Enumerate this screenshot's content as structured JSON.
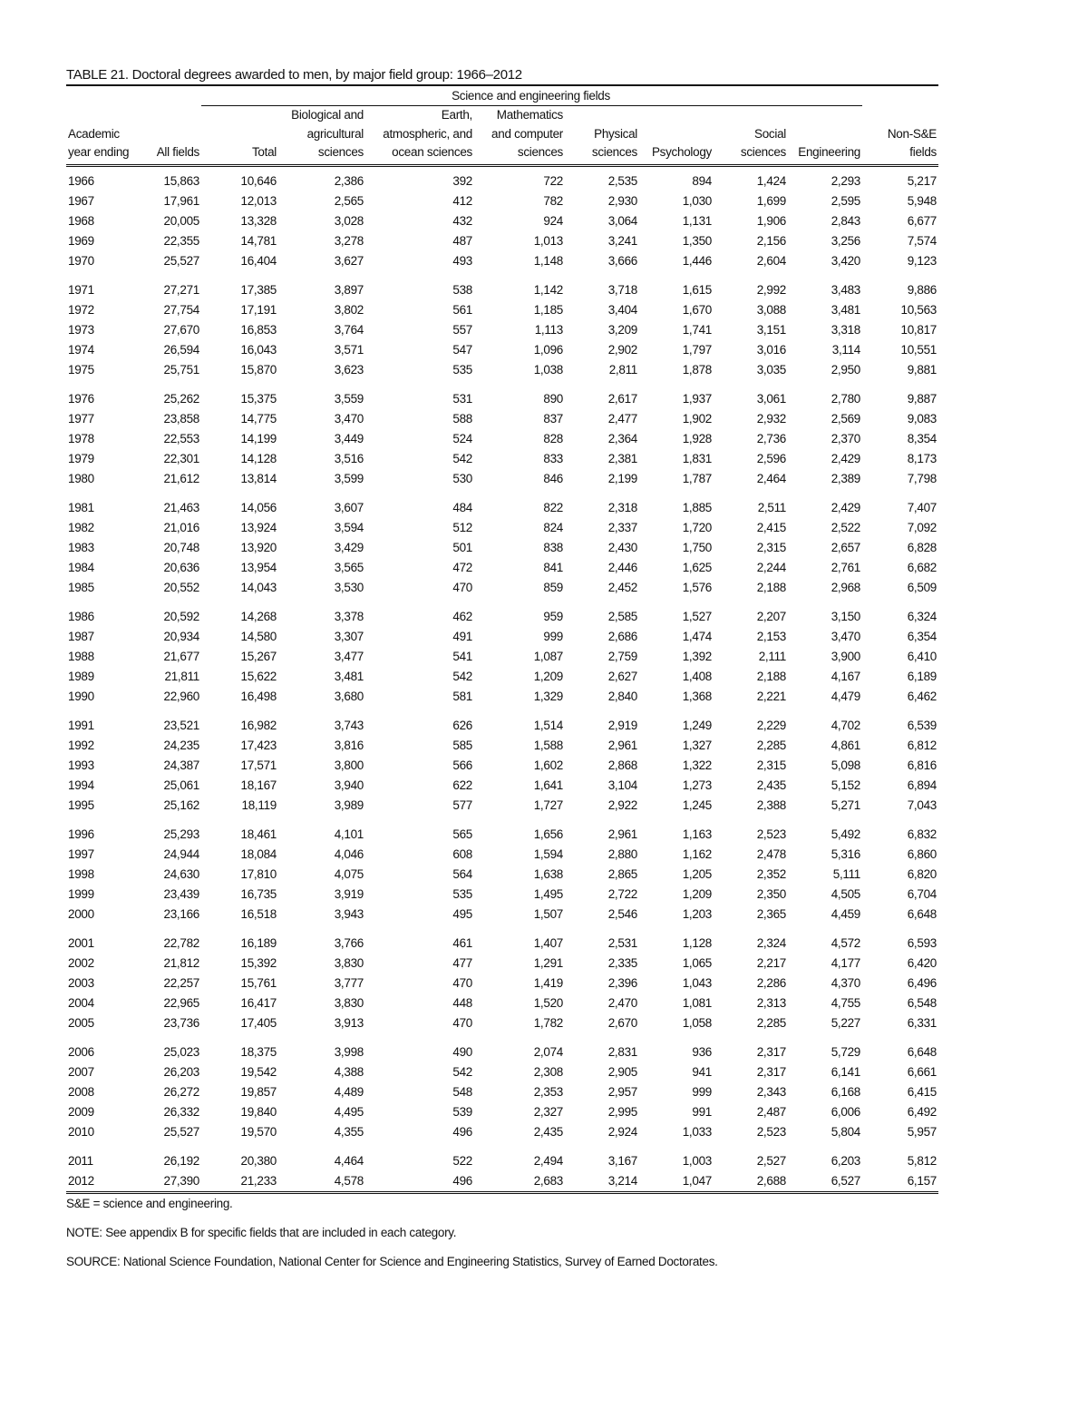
{
  "title": "TABLE 21. Doctoral degrees awarded to men, by major field group: 1966–2012",
  "spanner": "Science and engineering fields",
  "headers": [
    [
      "",
      "",
      "",
      "Biological and",
      "Earth,",
      "Mathematics",
      "",
      "",
      "",
      "",
      ""
    ],
    [
      "Academic",
      "",
      "",
      "agricultural",
      "atmospheric, and",
      "and computer",
      "Physical",
      "",
      "Social",
      "",
      "Non-S&E"
    ],
    [
      "year ending",
      "All fields",
      "Total",
      "sciences",
      "ocean sciences",
      "sciences",
      "sciences",
      "Psychology",
      "sciences",
      "Engineering",
      "fields"
    ]
  ],
  "rows": [
    [
      "1966",
      "15,863",
      "10,646",
      "2,386",
      "392",
      "722",
      "2,535",
      "894",
      "1,424",
      "2,293",
      "5,217"
    ],
    [
      "1967",
      "17,961",
      "12,013",
      "2,565",
      "412",
      "782",
      "2,930",
      "1,030",
      "1,699",
      "2,595",
      "5,948"
    ],
    [
      "1968",
      "20,005",
      "13,328",
      "3,028",
      "432",
      "924",
      "3,064",
      "1,131",
      "1,906",
      "2,843",
      "6,677"
    ],
    [
      "1969",
      "22,355",
      "14,781",
      "3,278",
      "487",
      "1,013",
      "3,241",
      "1,350",
      "2,156",
      "3,256",
      "7,574"
    ],
    [
      "1970",
      "25,527",
      "16,404",
      "3,627",
      "493",
      "1,148",
      "3,666",
      "1,446",
      "2,604",
      "3,420",
      "9,123"
    ],
    [
      "1971",
      "27,271",
      "17,385",
      "3,897",
      "538",
      "1,142",
      "3,718",
      "1,615",
      "2,992",
      "3,483",
      "9,886"
    ],
    [
      "1972",
      "27,754",
      "17,191",
      "3,802",
      "561",
      "1,185",
      "3,404",
      "1,670",
      "3,088",
      "3,481",
      "10,563"
    ],
    [
      "1973",
      "27,670",
      "16,853",
      "3,764",
      "557",
      "1,113",
      "3,209",
      "1,741",
      "3,151",
      "3,318",
      "10,817"
    ],
    [
      "1974",
      "26,594",
      "16,043",
      "3,571",
      "547",
      "1,096",
      "2,902",
      "1,797",
      "3,016",
      "3,114",
      "10,551"
    ],
    [
      "1975",
      "25,751",
      "15,870",
      "3,623",
      "535",
      "1,038",
      "2,811",
      "1,878",
      "3,035",
      "2,950",
      "9,881"
    ],
    [
      "1976",
      "25,262",
      "15,375",
      "3,559",
      "531",
      "890",
      "2,617",
      "1,937",
      "3,061",
      "2,780",
      "9,887"
    ],
    [
      "1977",
      "23,858",
      "14,775",
      "3,470",
      "588",
      "837",
      "2,477",
      "1,902",
      "2,932",
      "2,569",
      "9,083"
    ],
    [
      "1978",
      "22,553",
      "14,199",
      "3,449",
      "524",
      "828",
      "2,364",
      "1,928",
      "2,736",
      "2,370",
      "8,354"
    ],
    [
      "1979",
      "22,301",
      "14,128",
      "3,516",
      "542",
      "833",
      "2,381",
      "1,831",
      "2,596",
      "2,429",
      "8,173"
    ],
    [
      "1980",
      "21,612",
      "13,814",
      "3,599",
      "530",
      "846",
      "2,199",
      "1,787",
      "2,464",
      "2,389",
      "7,798"
    ],
    [
      "1981",
      "21,463",
      "14,056",
      "3,607",
      "484",
      "822",
      "2,318",
      "1,885",
      "2,511",
      "2,429",
      "7,407"
    ],
    [
      "1982",
      "21,016",
      "13,924",
      "3,594",
      "512",
      "824",
      "2,337",
      "1,720",
      "2,415",
      "2,522",
      "7,092"
    ],
    [
      "1983",
      "20,748",
      "13,920",
      "3,429",
      "501",
      "838",
      "2,430",
      "1,750",
      "2,315",
      "2,657",
      "6,828"
    ],
    [
      "1984",
      "20,636",
      "13,954",
      "3,565",
      "472",
      "841",
      "2,446",
      "1,625",
      "2,244",
      "2,761",
      "6,682"
    ],
    [
      "1985",
      "20,552",
      "14,043",
      "3,530",
      "470",
      "859",
      "2,452",
      "1,576",
      "2,188",
      "2,968",
      "6,509"
    ],
    [
      "1986",
      "20,592",
      "14,268",
      "3,378",
      "462",
      "959",
      "2,585",
      "1,527",
      "2,207",
      "3,150",
      "6,324"
    ],
    [
      "1987",
      "20,934",
      "14,580",
      "3,307",
      "491",
      "999",
      "2,686",
      "1,474",
      "2,153",
      "3,470",
      "6,354"
    ],
    [
      "1988",
      "21,677",
      "15,267",
      "3,477",
      "541",
      "1,087",
      "2,759",
      "1,392",
      "2,111",
      "3,900",
      "6,410"
    ],
    [
      "1989",
      "21,811",
      "15,622",
      "3,481",
      "542",
      "1,209",
      "2,627",
      "1,408",
      "2,188",
      "4,167",
      "6,189"
    ],
    [
      "1990",
      "22,960",
      "16,498",
      "3,680",
      "581",
      "1,329",
      "2,840",
      "1,368",
      "2,221",
      "4,479",
      "6,462"
    ],
    [
      "1991",
      "23,521",
      "16,982",
      "3,743",
      "626",
      "1,514",
      "2,919",
      "1,249",
      "2,229",
      "4,702",
      "6,539"
    ],
    [
      "1992",
      "24,235",
      "17,423",
      "3,816",
      "585",
      "1,588",
      "2,961",
      "1,327",
      "2,285",
      "4,861",
      "6,812"
    ],
    [
      "1993",
      "24,387",
      "17,571",
      "3,800",
      "566",
      "1,602",
      "2,868",
      "1,322",
      "2,315",
      "5,098",
      "6,816"
    ],
    [
      "1994",
      "25,061",
      "18,167",
      "3,940",
      "622",
      "1,641",
      "3,104",
      "1,273",
      "2,435",
      "5,152",
      "6,894"
    ],
    [
      "1995",
      "25,162",
      "18,119",
      "3,989",
      "577",
      "1,727",
      "2,922",
      "1,245",
      "2,388",
      "5,271",
      "7,043"
    ],
    [
      "1996",
      "25,293",
      "18,461",
      "4,101",
      "565",
      "1,656",
      "2,961",
      "1,163",
      "2,523",
      "5,492",
      "6,832"
    ],
    [
      "1997",
      "24,944",
      "18,084",
      "4,046",
      "608",
      "1,594",
      "2,880",
      "1,162",
      "2,478",
      "5,316",
      "6,860"
    ],
    [
      "1998",
      "24,630",
      "17,810",
      "4,075",
      "564",
      "1,638",
      "2,865",
      "1,205",
      "2,352",
      "5,111",
      "6,820"
    ],
    [
      "1999",
      "23,439",
      "16,735",
      "3,919",
      "535",
      "1,495",
      "2,722",
      "1,209",
      "2,350",
      "4,505",
      "6,704"
    ],
    [
      "2000",
      "23,166",
      "16,518",
      "3,943",
      "495",
      "1,507",
      "2,546",
      "1,203",
      "2,365",
      "4,459",
      "6,648"
    ],
    [
      "2001",
      "22,782",
      "16,189",
      "3,766",
      "461",
      "1,407",
      "2,531",
      "1,128",
      "2,324",
      "4,572",
      "6,593"
    ],
    [
      "2002",
      "21,812",
      "15,392",
      "3,830",
      "477",
      "1,291",
      "2,335",
      "1,065",
      "2,217",
      "4,177",
      "6,420"
    ],
    [
      "2003",
      "22,257",
      "15,761",
      "3,777",
      "470",
      "1,419",
      "2,396",
      "1,043",
      "2,286",
      "4,370",
      "6,496"
    ],
    [
      "2004",
      "22,965",
      "16,417",
      "3,830",
      "448",
      "1,520",
      "2,470",
      "1,081",
      "2,313",
      "4,755",
      "6,548"
    ],
    [
      "2005",
      "23,736",
      "17,405",
      "3,913",
      "470",
      "1,782",
      "2,670",
      "1,058",
      "2,285",
      "5,227",
      "6,331"
    ],
    [
      "2006",
      "25,023",
      "18,375",
      "3,998",
      "490",
      "2,074",
      "2,831",
      "936",
      "2,317",
      "5,729",
      "6,648"
    ],
    [
      "2007",
      "26,203",
      "19,542",
      "4,388",
      "542",
      "2,308",
      "2,905",
      "941",
      "2,317",
      "6,141",
      "6,661"
    ],
    [
      "2008",
      "26,272",
      "19,857",
      "4,489",
      "548",
      "2,353",
      "2,957",
      "999",
      "2,343",
      "6,168",
      "6,415"
    ],
    [
      "2009",
      "26,332",
      "19,840",
      "4,495",
      "539",
      "2,327",
      "2,995",
      "991",
      "2,487",
      "6,006",
      "6,492"
    ],
    [
      "2010",
      "25,527",
      "19,570",
      "4,355",
      "496",
      "2,435",
      "2,924",
      "1,033",
      "2,523",
      "5,804",
      "5,957"
    ],
    [
      "2011",
      "26,192",
      "20,380",
      "4,464",
      "522",
      "2,494",
      "3,167",
      "1,003",
      "2,527",
      "6,203",
      "5,812"
    ],
    [
      "2012",
      "27,390",
      "21,233",
      "4,578",
      "496",
      "2,683",
      "3,214",
      "1,047",
      "2,688",
      "6,527",
      "6,157"
    ]
  ],
  "notes": {
    "abbrev": "S&E = science and engineering.",
    "note": "NOTE: See appendix B for specific fields that are included in each category.",
    "source": "SOURCE: National Science Foundation, National Center for Science and Engineering Statistics, Survey of Earned Doctorates."
  }
}
